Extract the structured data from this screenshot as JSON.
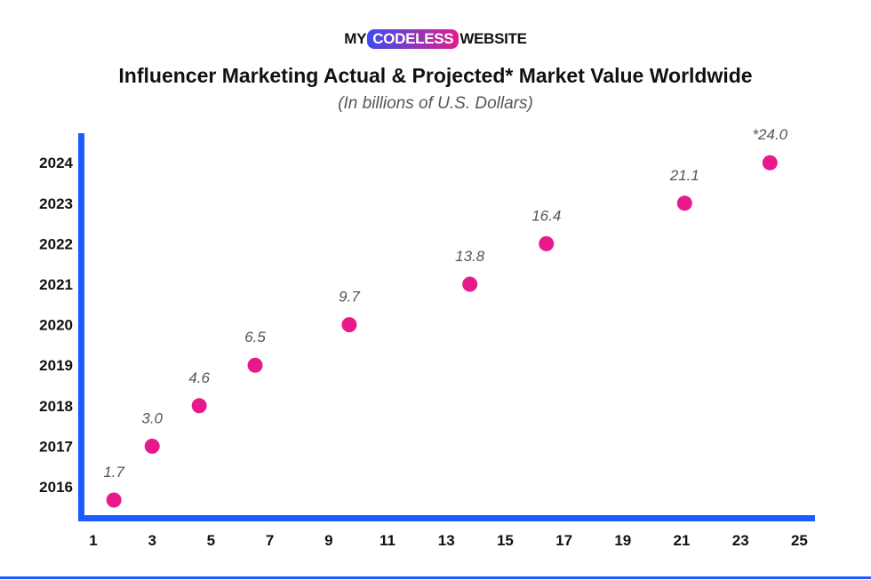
{
  "logo": {
    "left": "MY",
    "middle": "CODELESS",
    "right": "WEBSITE"
  },
  "chart_data": {
    "type": "scatter",
    "title": "Influencer Marketing Actual & Projected* Market Value Worldwide",
    "subtitle": "(In billions of U.S. Dollars)",
    "xlabel": "",
    "ylabel": "",
    "xlim": [
      1,
      25
    ],
    "x_ticks": [
      "1",
      "3",
      "5",
      "7",
      "9",
      "11",
      "13",
      "15",
      "17",
      "19",
      "21",
      "23",
      "25"
    ],
    "y_ticks": [
      "2016",
      "2017",
      "2018",
      "2019",
      "2020",
      "2021",
      "2022",
      "2023",
      "2024"
    ],
    "points": [
      {
        "year": 2016,
        "value": 1.7,
        "label": "1.7"
      },
      {
        "year": 2017,
        "value": 3.0,
        "label": "3.0"
      },
      {
        "year": 2018,
        "value": 4.6,
        "label": "4.6"
      },
      {
        "year": 2019,
        "value": 6.5,
        "label": "6.5"
      },
      {
        "year": 2020,
        "value": 9.7,
        "label": "9.7"
      },
      {
        "year": 2021,
        "value": 13.8,
        "label": "13.8"
      },
      {
        "year": 2022,
        "value": 16.4,
        "label": "16.4"
      },
      {
        "year": 2023,
        "value": 21.1,
        "label": "21.1"
      },
      {
        "year": 2024,
        "value": 24.0,
        "label": "*24.0"
      }
    ],
    "grid": false,
    "colors": {
      "point": "#e8198b",
      "axis": "#1a5cff"
    }
  }
}
